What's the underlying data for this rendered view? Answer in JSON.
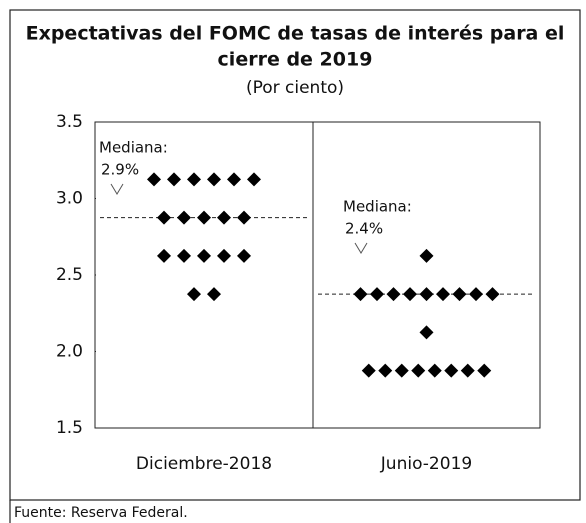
{
  "chart_data": {
    "type": "dot",
    "title": [
      "Expectativas del FOMC de tasas de interés para el",
      "cierre de 2019"
    ],
    "subtitle": "(Por ciento)",
    "categories": [
      "Diciembre-2018",
      "Junio-2019"
    ],
    "dots": [
      [
        3.125,
        3.125,
        3.125,
        3.125,
        3.125,
        3.125,
        2.875,
        2.875,
        2.875,
        2.875,
        2.875,
        2.625,
        2.625,
        2.625,
        2.625,
        2.625,
        2.375,
        2.375
      ],
      [
        2.625,
        2.375,
        2.375,
        2.375,
        2.375,
        2.375,
        2.375,
        2.375,
        2.375,
        2.375,
        2.125,
        1.875,
        1.875,
        1.875,
        1.875,
        1.875,
        1.875,
        1.875,
        1.875
      ]
    ],
    "color": "#000000",
    "median_title": "Mediana:",
    "medians": [
      2.875,
      2.375
    ],
    "median_labels": [
      "2.9%",
      "2.4%"
    ],
    "ylim": [
      1.5,
      3.5
    ],
    "yticks": [
      1.5,
      {
        "value": 2,
        "label": "2.0"
      },
      2.5,
      {
        "value": 3,
        "label": "3.0"
      },
      3.5
    ],
    "source": "Fuente: Reserva Federal."
  }
}
